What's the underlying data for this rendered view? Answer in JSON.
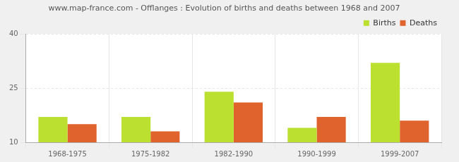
{
  "chart_data": {
    "type": "bar",
    "title": "www.map-france.com - Offlanges : Evolution of births and deaths between 1968 and 2007",
    "categories": [
      "1968-1975",
      "1975-1982",
      "1982-1990",
      "1990-1999",
      "1999-2007"
    ],
    "series": [
      {
        "name": "Births",
        "color": "#bbe02f",
        "values": [
          17,
          17,
          24,
          14,
          32
        ]
      },
      {
        "name": "Deaths",
        "color": "#e0632e",
        "values": [
          15,
          13,
          21,
          17,
          16
        ]
      }
    ],
    "ylim": [
      10,
      40
    ],
    "yticks": [
      10,
      25,
      40
    ],
    "grid": true,
    "legend": "top-right"
  }
}
